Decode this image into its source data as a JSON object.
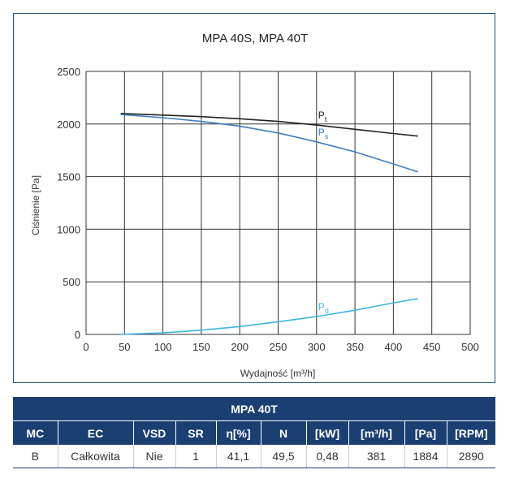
{
  "chart_data": {
    "type": "line",
    "title": "MPA 40S, MPA 40T",
    "xlabel": "Wydajność [m³/h]",
    "ylabel": "Ciśnienie [Pa]",
    "xlim": [
      0,
      500
    ],
    "ylim": [
      0,
      2500
    ],
    "xticks": [
      0,
      50,
      100,
      150,
      200,
      250,
      300,
      350,
      400,
      450,
      500
    ],
    "yticks": [
      0,
      500,
      1000,
      1500,
      2000,
      2500
    ],
    "grid": true,
    "series": [
      {
        "name": "Pt",
        "label_main": "P",
        "label_sub": "t",
        "color": "#222222",
        "x": [
          45,
          100,
          150,
          200,
          250,
          300,
          350,
          400,
          432
        ],
        "y": [
          2100,
          2085,
          2070,
          2050,
          2025,
          1990,
          1950,
          1910,
          1885
        ]
      },
      {
        "name": "Ps",
        "label_main": "P",
        "label_sub": "s",
        "color": "#3f7fbf",
        "x": [
          45,
          100,
          150,
          200,
          250,
          300,
          350,
          400,
          432
        ],
        "y": [
          2090,
          2060,
          2025,
          1980,
          1915,
          1830,
          1735,
          1620,
          1545
        ]
      },
      {
        "name": "Pd",
        "label_main": "P",
        "label_sub": "d",
        "color": "#3bb8e4",
        "x": [
          45,
          100,
          150,
          200,
          250,
          300,
          350,
          400,
          432
        ],
        "y": [
          0,
          15,
          40,
          75,
          120,
          170,
          230,
          300,
          340
        ]
      }
    ]
  },
  "table": {
    "title": "MPA 40T",
    "headers": [
      "MC",
      "EC",
      "VSD",
      "SR",
      "η[%]",
      "N",
      "[kW]",
      "[m³/h]",
      "[Pa]",
      "[RPM]"
    ],
    "row": [
      "B",
      "Całkowita",
      "Nie",
      "1",
      "41,1",
      "49,5",
      "0,48",
      "381",
      "1884",
      "2890"
    ]
  }
}
